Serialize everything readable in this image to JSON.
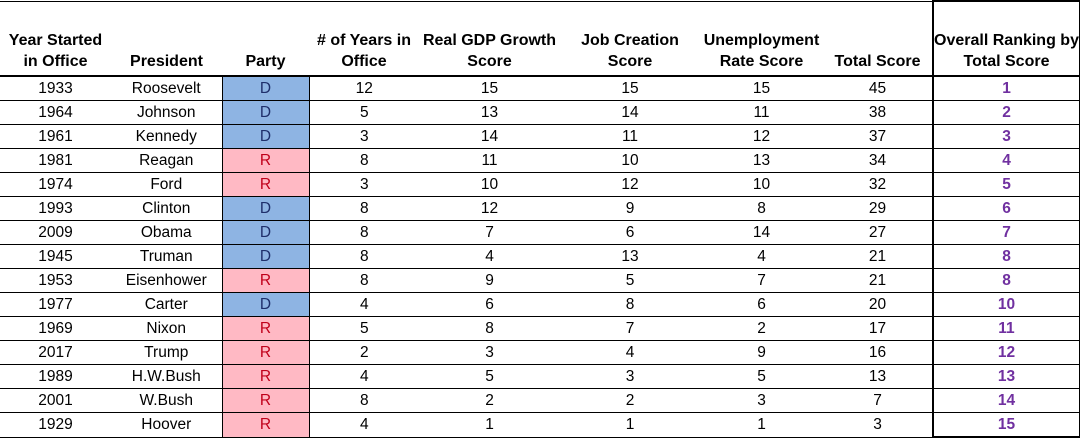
{
  "headers": {
    "year": "Year Started in Office",
    "president": "President",
    "party": "Party",
    "years": "# of Years in Office",
    "gdp": "Real GDP Growth Score",
    "jobs": "Job Creation Score",
    "unemp": "Unemployment Rate Score",
    "total": "Total Score",
    "rank": "Overall Ranking by Total Score"
  },
  "rows": [
    {
      "year": "1933",
      "president": "Roosevelt",
      "party": "D",
      "years": "12",
      "gdp": "15",
      "jobs": "15",
      "unemp": "15",
      "total": "45",
      "rank": "1"
    },
    {
      "year": "1964",
      "president": "Johnson",
      "party": "D",
      "years": "5",
      "gdp": "13",
      "jobs": "14",
      "unemp": "11",
      "total": "38",
      "rank": "2"
    },
    {
      "year": "1961",
      "president": "Kennedy",
      "party": "D",
      "years": "3",
      "gdp": "14",
      "jobs": "11",
      "unemp": "12",
      "total": "37",
      "rank": "3"
    },
    {
      "year": "1981",
      "president": "Reagan",
      "party": "R",
      "years": "8",
      "gdp": "11",
      "jobs": "10",
      "unemp": "13",
      "total": "34",
      "rank": "4"
    },
    {
      "year": "1974",
      "president": "Ford",
      "party": "R",
      "years": "3",
      "gdp": "10",
      "jobs": "12",
      "unemp": "10",
      "total": "32",
      "rank": "5"
    },
    {
      "year": "1993",
      "president": "Clinton",
      "party": "D",
      "years": "8",
      "gdp": "12",
      "jobs": "9",
      "unemp": "8",
      "total": "29",
      "rank": "6"
    },
    {
      "year": "2009",
      "president": "Obama",
      "party": "D",
      "years": "8",
      "gdp": "7",
      "jobs": "6",
      "unemp": "14",
      "total": "27",
      "rank": "7"
    },
    {
      "year": "1945",
      "president": "Truman",
      "party": "D",
      "years": "8",
      "gdp": "4",
      "jobs": "13",
      "unemp": "4",
      "total": "21",
      "rank": "8"
    },
    {
      "year": "1953",
      "president": "Eisenhower",
      "party": "R",
      "years": "8",
      "gdp": "9",
      "jobs": "5",
      "unemp": "7",
      "total": "21",
      "rank": "8"
    },
    {
      "year": "1977",
      "president": "Carter",
      "party": "D",
      "years": "4",
      "gdp": "6",
      "jobs": "8",
      "unemp": "6",
      "total": "20",
      "rank": "10"
    },
    {
      "year": "1969",
      "president": "Nixon",
      "party": "R",
      "years": "5",
      "gdp": "8",
      "jobs": "7",
      "unemp": "2",
      "total": "17",
      "rank": "11"
    },
    {
      "year": "2017",
      "president": "Trump",
      "party": "R",
      "years": "2",
      "gdp": "3",
      "jobs": "4",
      "unemp": "9",
      "total": "16",
      "rank": "12"
    },
    {
      "year": "1989",
      "president": "H.W.Bush",
      "party": "R",
      "years": "4",
      "gdp": "5",
      "jobs": "3",
      "unemp": "5",
      "total": "13",
      "rank": "13"
    },
    {
      "year": "2001",
      "president": "W.Bush",
      "party": "R",
      "years": "8",
      "gdp": "2",
      "jobs": "2",
      "unemp": "3",
      "total": "7",
      "rank": "14"
    },
    {
      "year": "1929",
      "president": "Hoover",
      "party": "R",
      "years": "4",
      "gdp": "1",
      "jobs": "1",
      "unemp": "1",
      "total": "3",
      "rank": "15"
    }
  ],
  "colors": {
    "party_d_fill": "#8eb4e3",
    "party_r_fill": "#ffb9c4",
    "party_r_text": "#c0001a",
    "rank_text": "#7030a0"
  }
}
